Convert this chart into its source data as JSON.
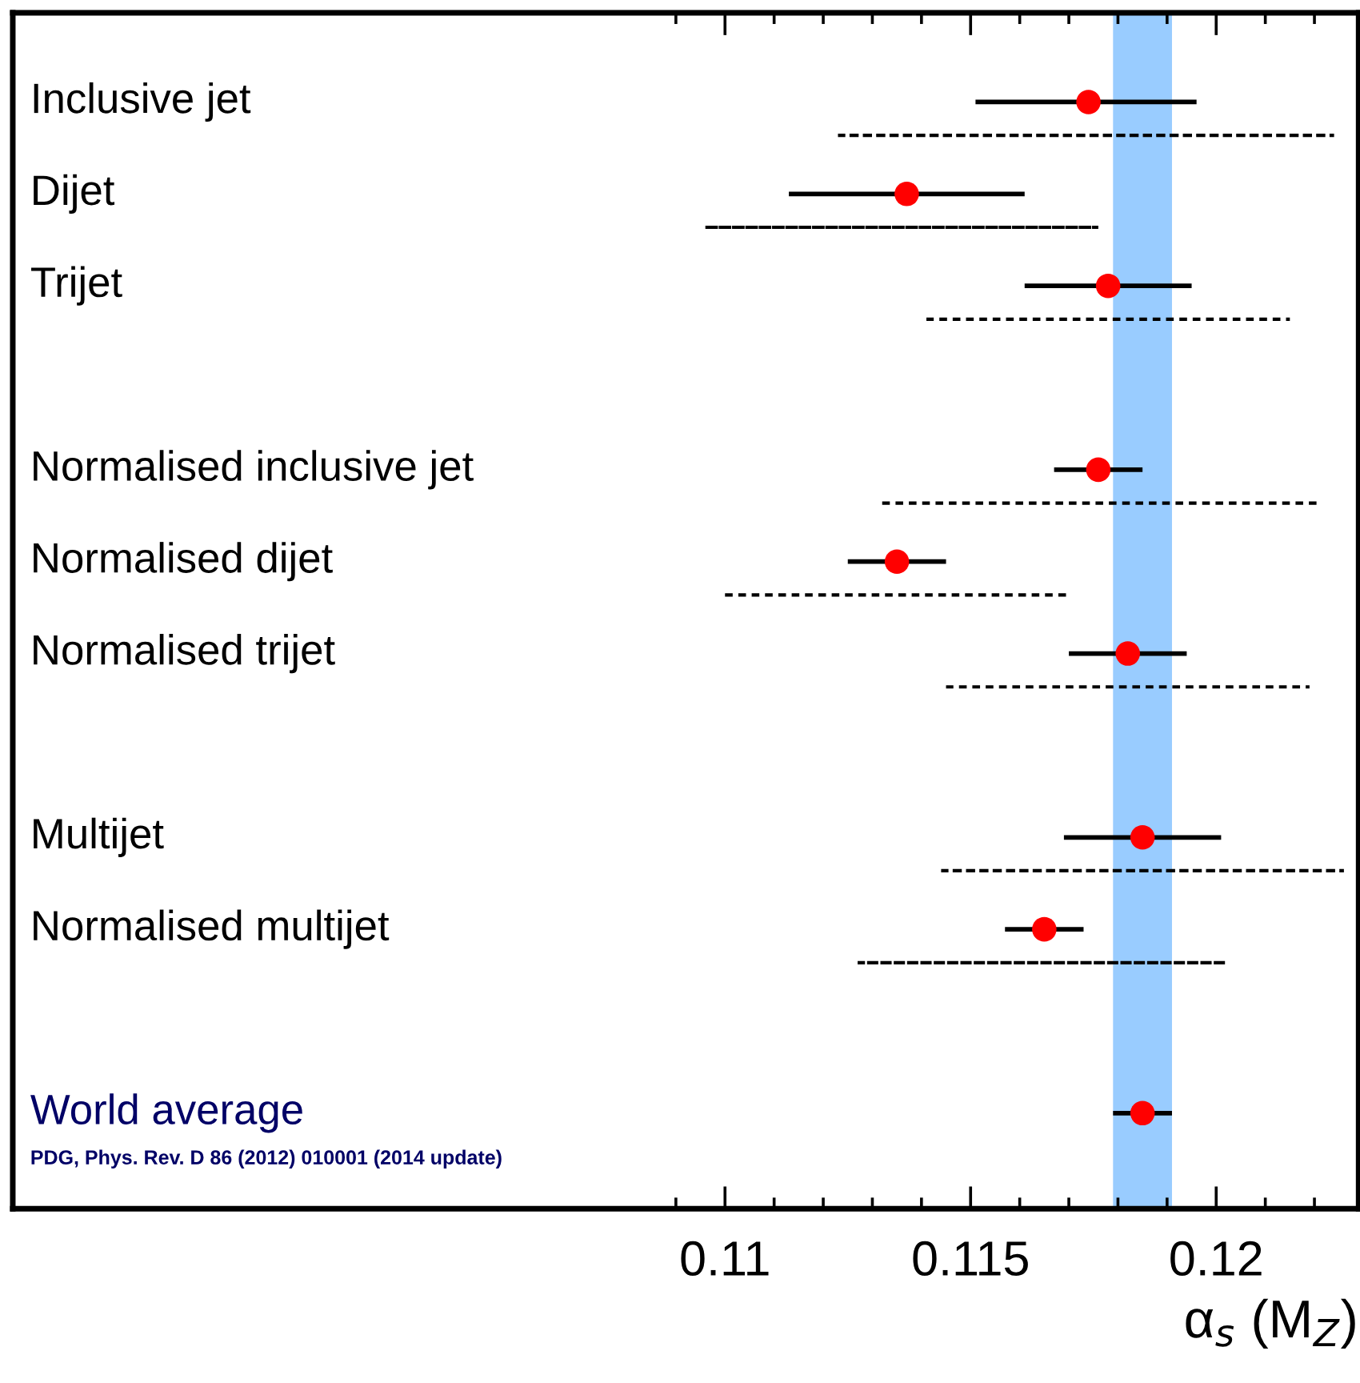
{
  "chart_data": {
    "type": "bar",
    "orientation": "horizontal",
    "categories": [
      "Inclusive jet",
      "Dijet",
      "Trijet",
      null,
      "Normalised inclusive jet",
      "Normalised dijet",
      "Normalised trijet",
      null,
      "Multijet",
      "Normalised multijet",
      null,
      "World average"
    ],
    "series": [
      {
        "type": "bar",
        "color": "#000000",
        "line_style": "solid",
        "base": [
          0.1151,
          0.1113,
          0.1161,
          null,
          0.1167,
          0.1125,
          0.117,
          null,
          0.1169,
          0.1157,
          null,
          0.1179
        ],
        "values": [
          0.0045,
          0.0048,
          0.0034,
          null,
          0.0018,
          0.002,
          0.0024,
          null,
          0.0032,
          0.0016,
          null,
          0.0012
        ]
      },
      {
        "type": "bar",
        "color": "#000000",
        "line_style": "dashed",
        "base": [
          0.1123,
          0.1096,
          0.1141,
          null,
          0.1132,
          0.11,
          0.1145,
          null,
          0.1144,
          0.1127,
          null,
          null
        ],
        "values": [
          0.0101,
          0.008,
          0.0074,
          null,
          0.0089,
          0.007,
          0.0074,
          null,
          0.0082,
          0.0075,
          null,
          null
        ]
      },
      {
        "type": "scatter",
        "color": "#ff0000",
        "marker": "circle",
        "values": [
          0.1174,
          0.1137,
          0.1178,
          null,
          0.1176,
          0.1135,
          0.1182,
          null,
          0.1185,
          0.1165,
          null,
          0.1185
        ]
      }
    ],
    "bands": [
      {
        "axis": "x",
        "from": 0.1179,
        "to": 0.1191,
        "color": "#99ccff"
      }
    ],
    "xlim": [
      0.0955,
      0.1229
    ],
    "xticks": [
      {
        "value": 0.109,
        "label": null
      },
      {
        "value": 0.11,
        "label": "0.11"
      },
      {
        "value": 0.111,
        "label": null
      },
      {
        "value": 0.112,
        "label": null
      },
      {
        "value": 0.113,
        "label": null
      },
      {
        "value": 0.114,
        "label": null
      },
      {
        "value": 0.115,
        "label": "0.115"
      },
      {
        "value": 0.116,
        "label": null
      },
      {
        "value": 0.117,
        "label": null
      },
      {
        "value": 0.118,
        "label": null
      },
      {
        "value": 0.119,
        "label": null
      },
      {
        "value": 0.12,
        "label": "0.12"
      },
      {
        "value": 0.121,
        "label": null
      },
      {
        "value": 0.122,
        "label": null
      }
    ],
    "xlabel": "α$_{s}$ (M$_{Z}$)",
    "annotations": [
      "PDG, Phys. Rev. D 86 (2012) 010001 (2014 update)"
    ],
    "grid": false,
    "legend": false
  }
}
